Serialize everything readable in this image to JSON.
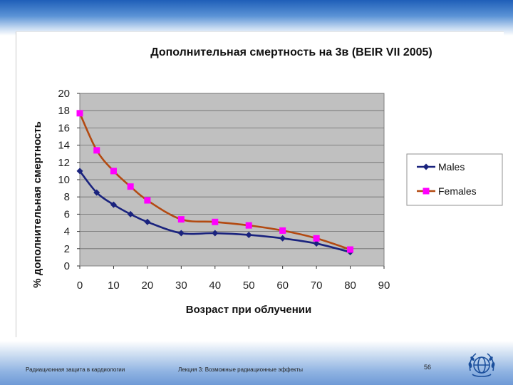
{
  "footer": {
    "left": "Радиационная защита в кардиологии",
    "center": "Лекция 3: Возможные радиационные эффекты",
    "page": "56"
  },
  "logo": {
    "icon": "un-emblem-icon"
  },
  "chart_data": {
    "type": "line",
    "title": "Дополнительная смертность на 3в (BEIR VII 2005)",
    "xlabel": "Возраст при облучении",
    "ylabel": "% дополнительная смертность",
    "xlim": [
      0,
      90
    ],
    "ylim": [
      0,
      20
    ],
    "xticks": [
      0,
      10,
      20,
      30,
      40,
      50,
      60,
      70,
      80,
      90
    ],
    "yticks": [
      0,
      2,
      4,
      6,
      8,
      10,
      12,
      14,
      16,
      18,
      20
    ],
    "grid": true,
    "plot_background": "#c0c0c0",
    "legend_position": "right",
    "series": [
      {
        "name": "Males",
        "color": "#1a237e",
        "marker": "diamond",
        "x": [
          0,
          5,
          10,
          15,
          20,
          30,
          40,
          50,
          60,
          70,
          80
        ],
        "values": [
          11.0,
          8.5,
          7.1,
          6.0,
          5.1,
          3.8,
          3.8,
          3.6,
          3.2,
          2.6,
          1.6
        ]
      },
      {
        "name": "Females",
        "color": "#b34a12",
        "marker_color": "#ff00ff",
        "marker": "square",
        "x": [
          0,
          5,
          10,
          15,
          20,
          30,
          40,
          50,
          60,
          70,
          80
        ],
        "values": [
          17.7,
          13.4,
          11.0,
          9.2,
          7.6,
          5.4,
          5.1,
          4.7,
          4.1,
          3.2,
          1.9
        ]
      }
    ]
  }
}
